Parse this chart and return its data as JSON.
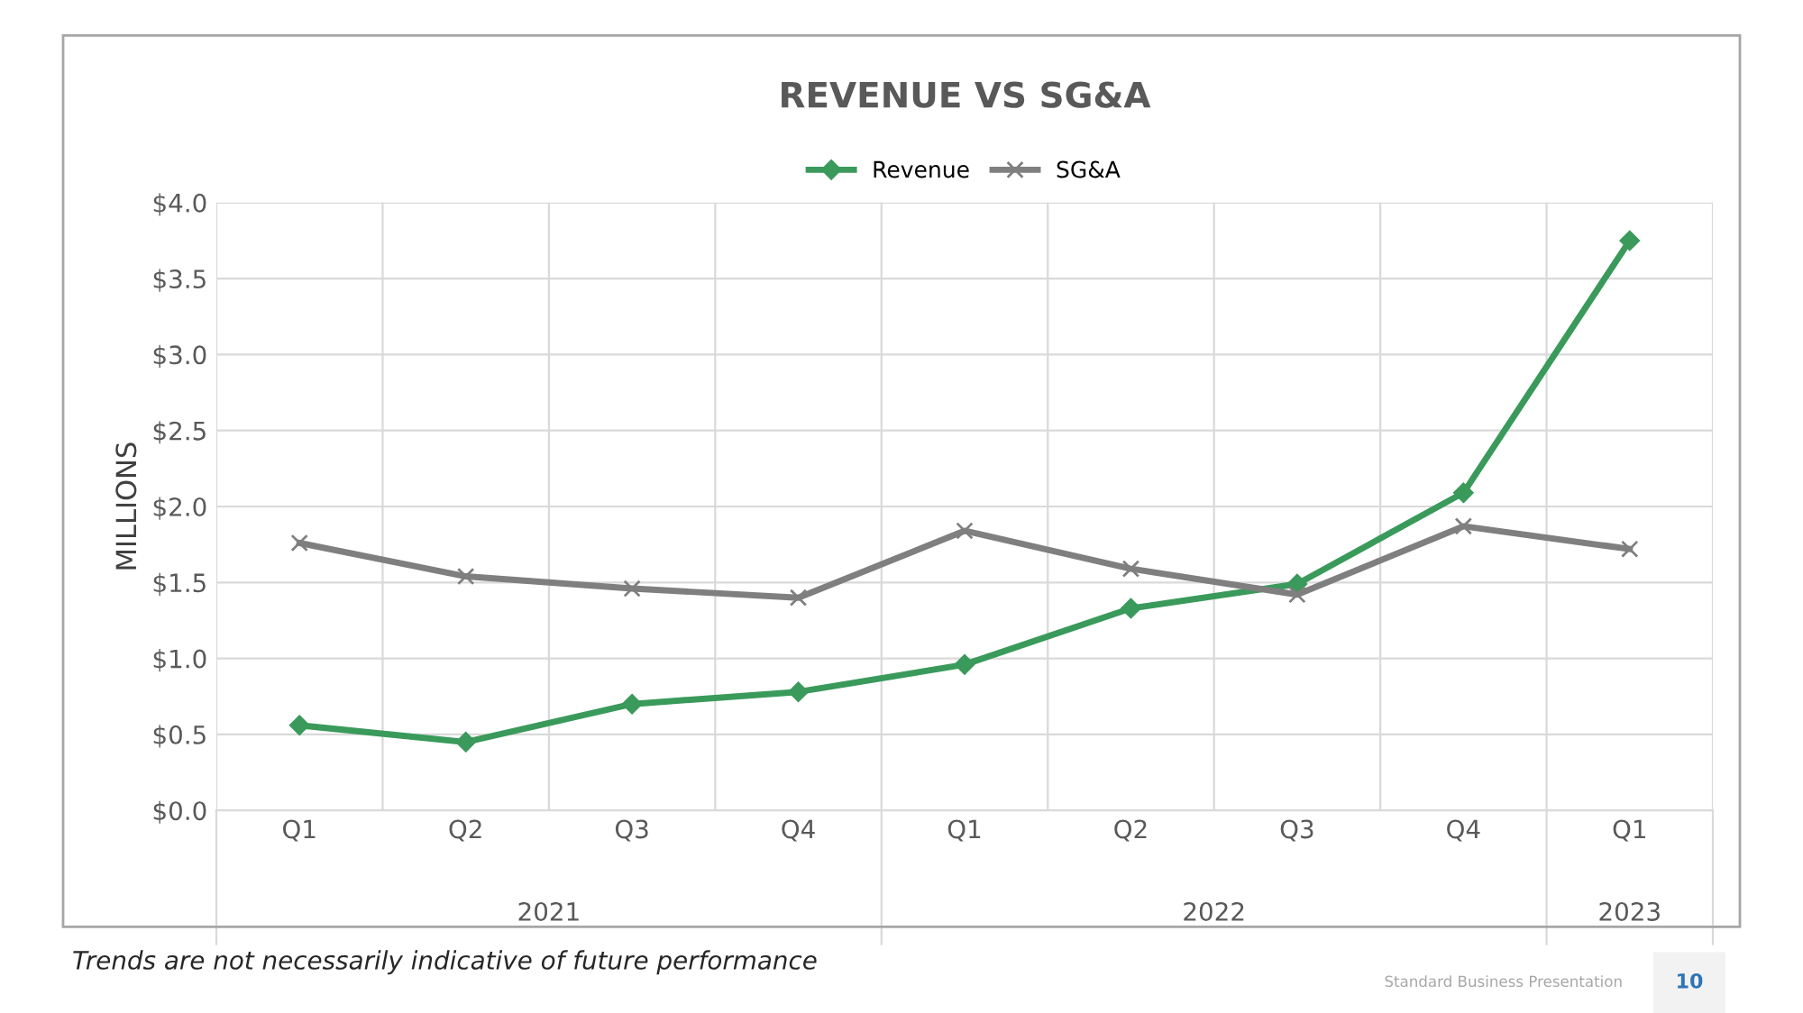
{
  "chart_data": {
    "type": "line",
    "title": "REVENUE VS SG&A",
    "ylabel": "MILLIONS",
    "categories": [
      "Q1",
      "Q2",
      "Q3",
      "Q4",
      "Q1",
      "Q2",
      "Q3",
      "Q4",
      "Q1"
    ],
    "series": [
      {
        "name": "Revenue",
        "color": "#3a9a5b",
        "marker": "diamond",
        "values": [
          0.56,
          0.45,
          0.7,
          0.78,
          0.96,
          1.33,
          1.49,
          2.09,
          3.75
        ]
      },
      {
        "name": "SG&A",
        "color": "#7f7f7f",
        "marker": "cross",
        "values": [
          1.76,
          1.54,
          1.46,
          1.4,
          1.84,
          1.59,
          1.42,
          1.87,
          1.72
        ]
      }
    ],
    "ylim": [
      0,
      4
    ],
    "yticks": [
      {
        "value": 0,
        "label": "$0.0"
      },
      {
        "value": 0.5,
        "label": "$0.5"
      },
      {
        "value": 1,
        "label": "$1.0"
      },
      {
        "value": 1.5,
        "label": "$1.5"
      },
      {
        "value": 2,
        "label": "$2.0"
      },
      {
        "value": 2.5,
        "label": "$2.5"
      },
      {
        "value": 3,
        "label": "$3.0"
      },
      {
        "value": 3.5,
        "label": "$3.5"
      },
      {
        "value": 4,
        "label": "$4.0"
      }
    ],
    "grid": true,
    "legend": "top",
    "line_style": "solid",
    "annotations": [
      "2021",
      "2022",
      "2023",
      "Trends are not necessarily indicative of future performance",
      "Standard Business Presentation",
      "10"
    ]
  }
}
